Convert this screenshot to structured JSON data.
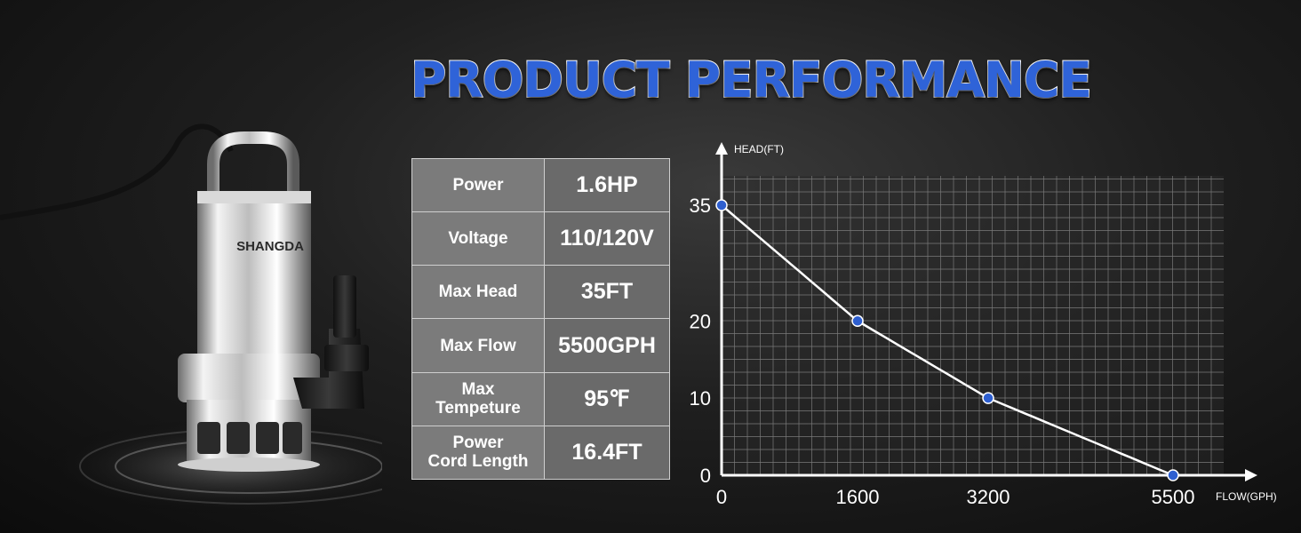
{
  "title": "PRODUCT PERFORMANCE",
  "brand": "SHANGDA",
  "specs": [
    {
      "label": "Power",
      "value": "1.6HP"
    },
    {
      "label": "Voltage",
      "value": "110/120V"
    },
    {
      "label": "Max Head",
      "value": "35FT"
    },
    {
      "label": "Max Flow",
      "value": "5500GPH"
    },
    {
      "label": "Max\nTempeture",
      "value": "95℉"
    },
    {
      "label": "Power\nCord Length",
      "value": "16.4FT"
    }
  ],
  "colors": {
    "title": "#2f63d8",
    "point": "#2e5fd0",
    "curve": "#ffffff",
    "grid": "#7a7a7a"
  },
  "chart_data": {
    "type": "line",
    "xlabel": "FLOW(GPH)",
    "ylabel": "HEAD(FT)",
    "x_ticks": [
      "0",
      "1600",
      "3200",
      "5500"
    ],
    "y_ticks": [
      "35",
      "20",
      "10",
      "0"
    ],
    "grid": true,
    "series": [
      {
        "x": [
          0,
          1600,
          3200,
          5500
        ],
        "y": [
          35,
          20,
          10,
          0
        ]
      }
    ]
  }
}
